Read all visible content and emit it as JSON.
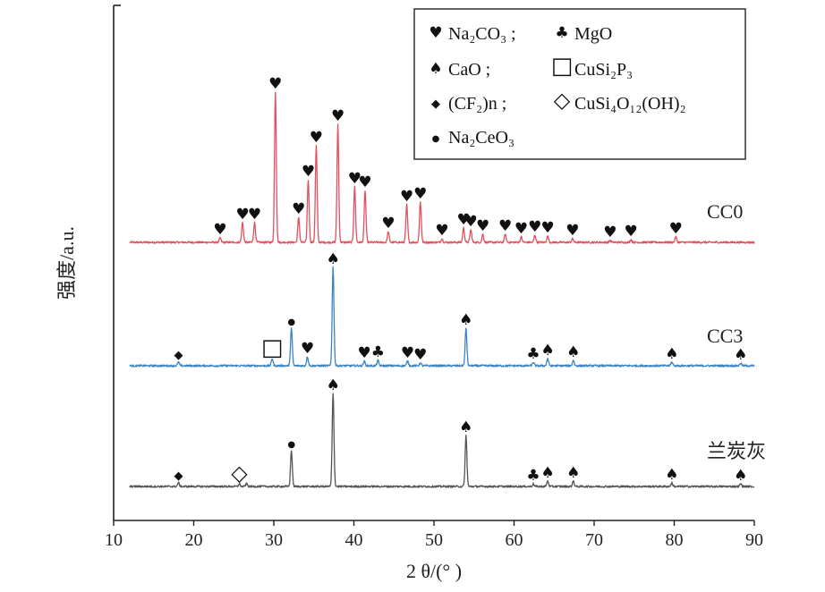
{
  "chart_data": {
    "type": "line",
    "xlabel": "2 θ/(° )",
    "ylabel": "强度/a.u.",
    "xlim": [
      10,
      90
    ],
    "xticks": [
      "10",
      "20",
      "30",
      "40",
      "50",
      "60",
      "70",
      "80",
      "90"
    ],
    "colors": {
      "CC0": "#e0525e",
      "CC3": "#3b84c4",
      "兰炭灰": "#555555",
      "axis": "#222222",
      "marker": "#111111"
    },
    "legend": [
      {
        "icon": "heart-icon",
        "text": "Na₂CO₃ ;"
      },
      {
        "icon": "club-icon",
        "text": "MgO"
      },
      {
        "icon": "spade-icon",
        "text": "CaO ;"
      },
      {
        "icon": "square-outline-icon",
        "text": "CuSi₂P₃"
      },
      {
        "icon": "diamond-filled-icon",
        "text": "(CF₂)n ;"
      },
      {
        "icon": "diamond-outline-icon",
        "text": "CuSi₄O₁₂(OH)₂"
      },
      {
        "icon": "dot-icon",
        "text": "Na₂CeO₃"
      }
    ],
    "series": [
      {
        "name": "CC0",
        "baseline": 0,
        "peaks": [
          {
            "x": 23.3,
            "h": 5
          },
          {
            "x": 26.1,
            "h": 22
          },
          {
            "x": 27.6,
            "h": 22
          },
          {
            "x": 30.2,
            "h": 168
          },
          {
            "x": 33.1,
            "h": 28
          },
          {
            "x": 34.3,
            "h": 70
          },
          {
            "x": 35.3,
            "h": 108
          },
          {
            "x": 38.0,
            "h": 132
          },
          {
            "x": 40.1,
            "h": 62
          },
          {
            "x": 41.4,
            "h": 58
          },
          {
            "x": 44.3,
            "h": 12
          },
          {
            "x": 46.6,
            "h": 42
          },
          {
            "x": 48.3,
            "h": 45
          },
          {
            "x": 51.0,
            "h": 4
          },
          {
            "x": 53.7,
            "h": 16
          },
          {
            "x": 54.6,
            "h": 14
          },
          {
            "x": 56.1,
            "h": 9
          },
          {
            "x": 58.9,
            "h": 9
          },
          {
            "x": 60.9,
            "h": 6
          },
          {
            "x": 62.6,
            "h": 8
          },
          {
            "x": 64.2,
            "h": 7
          },
          {
            "x": 67.3,
            "h": 4
          },
          {
            "x": 72.0,
            "h": 2
          },
          {
            "x": 74.6,
            "h": 3
          },
          {
            "x": 80.2,
            "h": 6
          }
        ]
      },
      {
        "name": "CC3",
        "baseline": 0,
        "peaks": [
          {
            "x": 18.1,
            "h": 4
          },
          {
            "x": 29.8,
            "h": 8
          },
          {
            "x": 32.2,
            "h": 42
          },
          {
            "x": 34.2,
            "h": 10
          },
          {
            "x": 37.4,
            "h": 110
          },
          {
            "x": 41.3,
            "h": 5
          },
          {
            "x": 43.0,
            "h": 6
          },
          {
            "x": 46.7,
            "h": 5
          },
          {
            "x": 48.3,
            "h": 3
          },
          {
            "x": 54.0,
            "h": 42
          },
          {
            "x": 62.4,
            "h": 4
          },
          {
            "x": 64.2,
            "h": 8
          },
          {
            "x": 67.4,
            "h": 6
          },
          {
            "x": 79.7,
            "h": 4
          },
          {
            "x": 88.3,
            "h": 3
          }
        ]
      },
      {
        "name": "兰炭灰",
        "baseline": 0,
        "peaks": [
          {
            "x": 18.1,
            "h": 4
          },
          {
            "x": 25.7,
            "h": 3
          },
          {
            "x": 26.6,
            "h": 3
          },
          {
            "x": 32.2,
            "h": 40
          },
          {
            "x": 37.4,
            "h": 104
          },
          {
            "x": 54.0,
            "h": 57
          },
          {
            "x": 62.4,
            "h": 3
          },
          {
            "x": 64.2,
            "h": 6
          },
          {
            "x": 67.4,
            "h": 6
          },
          {
            "x": 79.7,
            "h": 4
          },
          {
            "x": 88.3,
            "h": 3
          }
        ]
      }
    ],
    "annotations": [
      {
        "series": "CC0",
        "marks": [
          {
            "x": 23.3,
            "icon": "heart-icon"
          },
          {
            "x": 26.1,
            "icon": "heart-icon"
          },
          {
            "x": 27.6,
            "icon": "heart-icon"
          },
          {
            "x": 30.2,
            "icon": "heart-icon"
          },
          {
            "x": 33.1,
            "icon": "heart-icon"
          },
          {
            "x": 34.3,
            "icon": "heart-icon"
          },
          {
            "x": 35.3,
            "icon": "heart-icon"
          },
          {
            "x": 38.0,
            "icon": "heart-icon"
          },
          {
            "x": 40.1,
            "icon": "heart-icon"
          },
          {
            "x": 41.4,
            "icon": "heart-icon"
          },
          {
            "x": 44.3,
            "icon": "heart-icon"
          },
          {
            "x": 46.6,
            "icon": "heart-icon"
          },
          {
            "x": 48.3,
            "icon": "heart-icon"
          },
          {
            "x": 51.0,
            "icon": "heart-icon"
          },
          {
            "x": 53.7,
            "icon": "heart-icon"
          },
          {
            "x": 54.6,
            "icon": "heart-icon"
          },
          {
            "x": 56.1,
            "icon": "heart-icon"
          },
          {
            "x": 58.9,
            "icon": "heart-icon"
          },
          {
            "x": 60.9,
            "icon": "heart-icon"
          },
          {
            "x": 62.6,
            "icon": "heart-icon"
          },
          {
            "x": 64.2,
            "icon": "heart-icon"
          },
          {
            "x": 67.3,
            "icon": "heart-icon"
          },
          {
            "x": 72.0,
            "icon": "heart-icon"
          },
          {
            "x": 74.6,
            "icon": "heart-icon"
          },
          {
            "x": 80.2,
            "icon": "heart-icon"
          }
        ]
      },
      {
        "series": "CC3",
        "marks": [
          {
            "x": 18.1,
            "icon": "diamond-filled-icon"
          },
          {
            "x": 29.8,
            "icon": "square-outline-icon"
          },
          {
            "x": 32.2,
            "icon": "dot-icon"
          },
          {
            "x": 34.2,
            "icon": "heart-icon"
          },
          {
            "x": 37.4,
            "icon": "spade-icon"
          },
          {
            "x": 41.3,
            "icon": "heart-icon"
          },
          {
            "x": 43.0,
            "icon": "club-icon"
          },
          {
            "x": 46.7,
            "icon": "heart-icon"
          },
          {
            "x": 48.3,
            "icon": "heart-icon"
          },
          {
            "x": 54.0,
            "icon": "spade-icon"
          },
          {
            "x": 62.4,
            "icon": "club-icon"
          },
          {
            "x": 64.2,
            "icon": "spade-icon"
          },
          {
            "x": 67.4,
            "icon": "spade-icon"
          },
          {
            "x": 79.7,
            "icon": "spade-icon"
          },
          {
            "x": 88.3,
            "icon": "spade-icon"
          }
        ]
      },
      {
        "series": "兰炭灰",
        "marks": [
          {
            "x": 18.1,
            "icon": "diamond-filled-icon"
          },
          {
            "x": 25.7,
            "icon": "diamond-outline-icon"
          },
          {
            "x": 32.2,
            "icon": "dot-icon"
          },
          {
            "x": 37.4,
            "icon": "spade-icon"
          },
          {
            "x": 54.0,
            "icon": "spade-icon"
          },
          {
            "x": 62.4,
            "icon": "club-icon"
          },
          {
            "x": 64.2,
            "icon": "spade-icon"
          },
          {
            "x": 67.4,
            "icon": "spade-icon"
          },
          {
            "x": 79.7,
            "icon": "spade-icon"
          },
          {
            "x": 88.3,
            "icon": "spade-icon"
          }
        ]
      }
    ],
    "grid": false,
    "legend_position": "top-right"
  }
}
